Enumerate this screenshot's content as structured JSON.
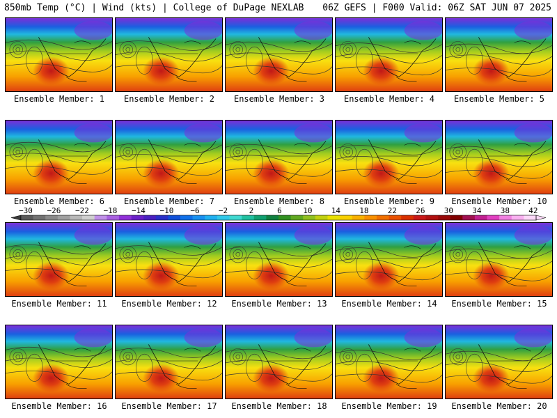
{
  "header": {
    "left": "850mb Temp (°C) | Wind (kts) | College of DuPage NEXLAB",
    "right": "06Z GEFS | F000 Valid: 06Z SAT JUN 07 2025"
  },
  "caption_prefix": "Ensemble Member: ",
  "members": [
    {
      "label": "Ensemble Member: 1"
    },
    {
      "label": "Ensemble Member: 2"
    },
    {
      "label": "Ensemble Member: 3"
    },
    {
      "label": "Ensemble Member: 4"
    },
    {
      "label": "Ensemble Member: 5"
    },
    {
      "label": "Ensemble Member: 6"
    },
    {
      "label": "Ensemble Member: 7"
    },
    {
      "label": "Ensemble Member: 8"
    },
    {
      "label": "Ensemble Member: 9"
    },
    {
      "label": "Ensemble Member: 10"
    },
    {
      "label": "Ensemble Member: 11"
    },
    {
      "label": "Ensemble Member: 12"
    },
    {
      "label": "Ensemble Member: 13"
    },
    {
      "label": "Ensemble Member: 14"
    },
    {
      "label": "Ensemble Member: 15"
    },
    {
      "label": "Ensemble Member: 16"
    },
    {
      "label": "Ensemble Member: 17"
    },
    {
      "label": "Ensemble Member: 18"
    },
    {
      "label": "Ensemble Member: 19"
    },
    {
      "label": "Ensemble Member: 20"
    }
  ],
  "colorbar": {
    "tick_labels": [
      "−30",
      "−26",
      "−22",
      "−18",
      "−14",
      "−10",
      "−6",
      "−2",
      "2",
      "6",
      "10",
      "14",
      "18",
      "22",
      "26",
      "30",
      "34",
      "38",
      "42"
    ],
    "colors": [
      "#5a5a5a",
      "#727272",
      "#8a8a8a",
      "#a0a0a0",
      "#b8b8b8",
      "#cfcfcf",
      "#c090e8",
      "#a860e0",
      "#9030d8",
      "#6a20c8",
      "#4a20c0",
      "#2830c8",
      "#1050d8",
      "#1070e8",
      "#1890f0",
      "#20b0f0",
      "#30c8e8",
      "#40d8d0",
      "#20c0a0",
      "#10a070",
      "#108040",
      "#309020",
      "#60a820",
      "#90c020",
      "#c0d010",
      "#e8e000",
      "#f8d000",
      "#f8b000",
      "#f89000",
      "#f07000",
      "#e85000",
      "#d83000",
      "#c81818",
      "#b01010",
      "#980808",
      "#800000",
      "#a01050",
      "#c02090",
      "#e040c0",
      "#f080e0",
      "#f8b0f0",
      "#fcd8f8"
    ],
    "map_colors": {
      "cold": "#7a30d8",
      "cool": "#1a60e0",
      "cyan": "#20b8e0",
      "green": "#30a040",
      "lime": "#a0cc20",
      "yellow": "#f8e010",
      "orange": "#f8a000",
      "red": "#e04010",
      "darkred": "#c01818"
    }
  }
}
